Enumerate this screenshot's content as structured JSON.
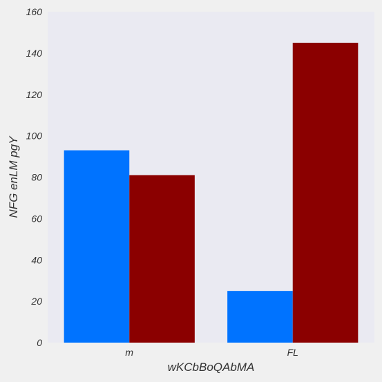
{
  "chart_data": {
    "type": "bar",
    "xlabel": "wKCbBoQAbMA",
    "ylabel": "NFG enLM pgY",
    "categories": [
      "m",
      "FL"
    ],
    "series": [
      {
        "color": "#0073ff",
        "values": [
          93,
          25
        ]
      },
      {
        "color": "#8b0000",
        "values": [
          81,
          145
        ]
      }
    ],
    "ylim": [
      0,
      160
    ],
    "yticks": [
      0,
      20,
      40,
      60,
      80,
      100,
      120,
      140,
      160
    ],
    "grid": false,
    "legend": "none",
    "background": "#eaeaf2"
  }
}
